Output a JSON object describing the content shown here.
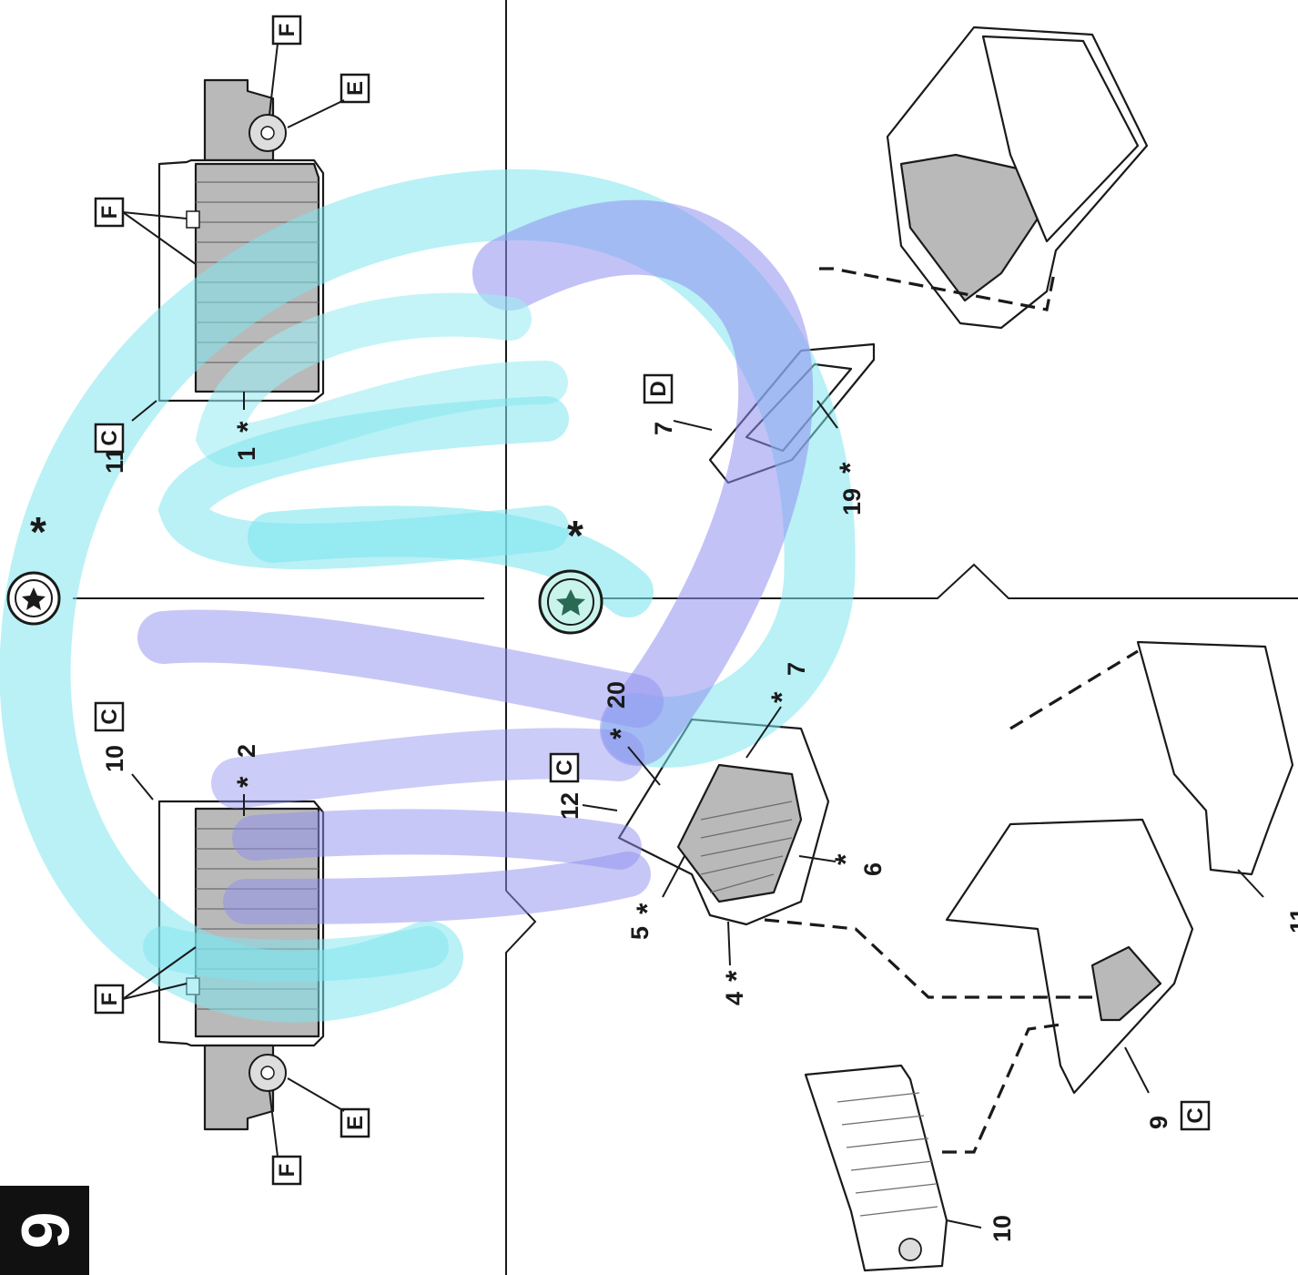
{
  "page": {
    "number": "6"
  },
  "symbols": {
    "star_marker": "*",
    "note_icon": "seal-icon"
  },
  "colors": {
    "cyan_overlay": "#7fe6ee",
    "violet_overlay": "#8f8ff0",
    "ink": "#1a1a1a",
    "part_gray": "#b9b9b9"
  },
  "upper_view": {
    "right_assembly": {
      "label_11": "11",
      "box_c": "C",
      "label_1": "1",
      "box_f_top": "F",
      "box_f_side": "F",
      "box_e": "E"
    },
    "left_assembly": {
      "label_10": "10",
      "box_c": "C",
      "label_2": "2",
      "box_f_top": "F",
      "box_f_side": "F",
      "box_e": "E"
    }
  },
  "lower_view": {
    "part_7": {
      "label_7": "7",
      "box_d": "D",
      "label_19": "19"
    },
    "part_12": {
      "label_12": "12",
      "box_c": "C",
      "label_20": "20",
      "label_7b": "7",
      "label_6": "6",
      "label_5": "5",
      "label_4": "4"
    },
    "exploded": {
      "label_9": "9",
      "box_c": "C",
      "label_10": "10",
      "label_11": "11"
    }
  }
}
